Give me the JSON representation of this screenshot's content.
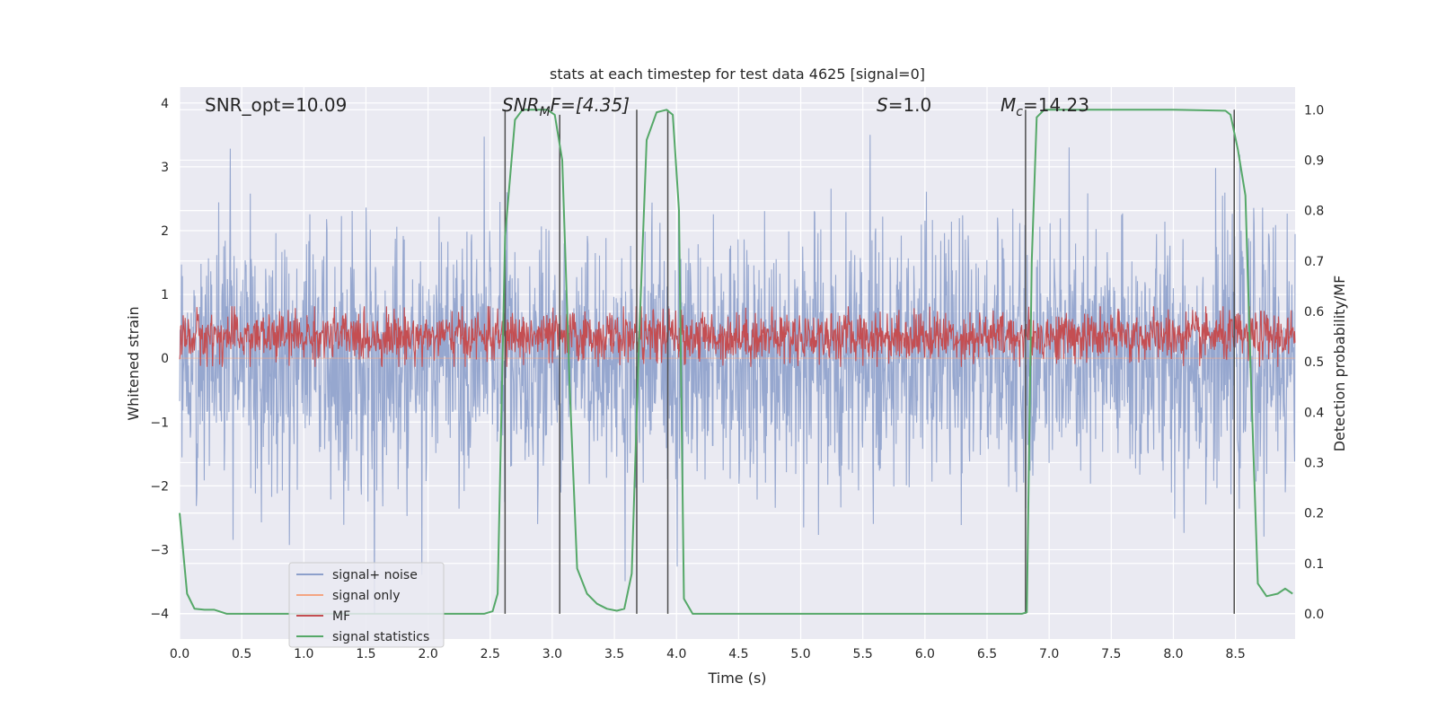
{
  "chart_data": {
    "type": "line",
    "title": "stats at each timestep for test data 4625 [signal=0]",
    "xlabel": "Time (s)",
    "ylabel": "Whitened strain",
    "ylabel_right": "Detection probability/MF",
    "xlim": [
      0.0,
      8.98
    ],
    "ylim": [
      -4.4,
      4.25
    ],
    "ylim_right": [
      -0.05,
      1.045
    ],
    "x_ticks": [
      0.0,
      0.5,
      1.0,
      1.5,
      2.0,
      2.5,
      3.0,
      3.5,
      4.0,
      4.5,
      5.0,
      5.5,
      6.0,
      6.5,
      7.0,
      7.5,
      8.0,
      8.5
    ],
    "x_tick_labels": [
      "0.0",
      "0.5",
      "1.0",
      "1.5",
      "2.0",
      "2.5",
      "3.0",
      "3.5",
      "4.0",
      "4.5",
      "5.0",
      "5.5",
      "6.0",
      "6.5",
      "7.0",
      "7.5",
      "8.0",
      "8.5"
    ],
    "y_ticks": [
      4,
      3,
      2,
      1,
      0,
      -1,
      -2,
      -3,
      -4
    ],
    "y_tick_labels": [
      "4",
      "3",
      "2",
      "1",
      "0",
      "−1",
      "−2",
      "−3",
      "−4"
    ],
    "y_ticks_right": [
      1.0,
      0.9,
      0.8,
      0.7,
      0.6,
      0.5,
      0.4,
      0.3,
      0.2,
      0.1,
      0.0
    ],
    "y_tick_labels_right": [
      "1.0",
      "0.9",
      "0.8",
      "0.7",
      "0.6",
      "0.5",
      "0.4",
      "0.3",
      "0.2",
      "0.1",
      "0.0"
    ],
    "series": [
      {
        "name": "signal+ noise",
        "color": "#8da0cb",
        "axis": "left",
        "generated": "noise",
        "amplitude_std": 1.0,
        "peak_range": [
          -4.0,
          3.5
        ]
      },
      {
        "name": "signal only",
        "color": "#f4a582",
        "axis": "left",
        "values": "flat zero"
      },
      {
        "name": "MF",
        "color": "#c44e52",
        "axis": "right",
        "generated": "noise",
        "range": [
          0.5,
          0.6
        ]
      },
      {
        "name": "signal statistics",
        "color": "#55a868",
        "axis": "right",
        "points": [
          [
            0.0,
            0.2
          ],
          [
            0.06,
            0.04
          ],
          [
            0.12,
            0.01
          ],
          [
            0.2,
            0.008
          ],
          [
            0.28,
            0.008
          ],
          [
            0.38,
            0.0
          ],
          [
            0.6,
            0.0
          ],
          [
            1.0,
            0.0
          ],
          [
            2.0,
            0.0
          ],
          [
            2.45,
            0.0
          ],
          [
            2.52,
            0.005
          ],
          [
            2.56,
            0.04
          ],
          [
            2.62,
            0.75
          ],
          [
            2.7,
            0.98
          ],
          [
            2.76,
            1.0
          ],
          [
            2.96,
            1.0
          ],
          [
            3.02,
            0.99
          ],
          [
            3.08,
            0.9
          ],
          [
            3.14,
            0.45
          ],
          [
            3.2,
            0.09
          ],
          [
            3.28,
            0.04
          ],
          [
            3.36,
            0.02
          ],
          [
            3.44,
            0.01
          ],
          [
            3.52,
            0.006
          ],
          [
            3.58,
            0.01
          ],
          [
            3.64,
            0.08
          ],
          [
            3.7,
            0.55
          ],
          [
            3.76,
            0.94
          ],
          [
            3.84,
            0.995
          ],
          [
            3.92,
            1.0
          ],
          [
            3.97,
            0.99
          ],
          [
            4.02,
            0.8
          ],
          [
            4.06,
            0.03
          ],
          [
            4.13,
            0.0
          ],
          [
            5.0,
            0.0
          ],
          [
            6.0,
            0.0
          ],
          [
            6.78,
            0.0
          ],
          [
            6.82,
            0.003
          ],
          [
            6.86,
            0.7
          ],
          [
            6.9,
            0.985
          ],
          [
            6.96,
            1.0
          ],
          [
            7.5,
            1.0
          ],
          [
            8.0,
            1.0
          ],
          [
            8.42,
            0.998
          ],
          [
            8.46,
            0.99
          ],
          [
            8.52,
            0.92
          ],
          [
            8.58,
            0.83
          ],
          [
            8.62,
            0.5
          ],
          [
            8.68,
            0.06
          ],
          [
            8.75,
            0.035
          ],
          [
            8.84,
            0.04
          ],
          [
            8.9,
            0.05
          ],
          [
            8.96,
            0.04
          ]
        ]
      }
    ],
    "vertical_lines": [
      {
        "x": 2.62,
        "y_top": 1.0
      },
      {
        "x": 3.06,
        "y_top": 0.99
      },
      {
        "x": 3.68,
        "y_top": 1.0
      },
      {
        "x": 3.93,
        "y_top": 1.0
      },
      {
        "x": 6.81,
        "y_top": 1.0
      },
      {
        "x": 8.49,
        "y_top": 1.0
      }
    ],
    "annotations": [
      {
        "id": "snr_opt",
        "text": "SNR_opt=10.09"
      },
      {
        "id": "snr_mf",
        "text": "SNR_MF=[4.35]",
        "base": "SNR",
        "sub": "M",
        "rest": "F=[4.35]"
      },
      {
        "id": "s",
        "text": "S=1.0",
        "base": "S",
        "rest": "=1.0"
      },
      {
        "id": "mc",
        "text": "M_c=14.23",
        "base": "M",
        "sub": "c",
        "rest": "=14.23"
      }
    ],
    "legend": {
      "placement": "lower-left",
      "entries": [
        "signal+ noise",
        "signal only",
        "MF",
        "signal statistics"
      ]
    }
  }
}
